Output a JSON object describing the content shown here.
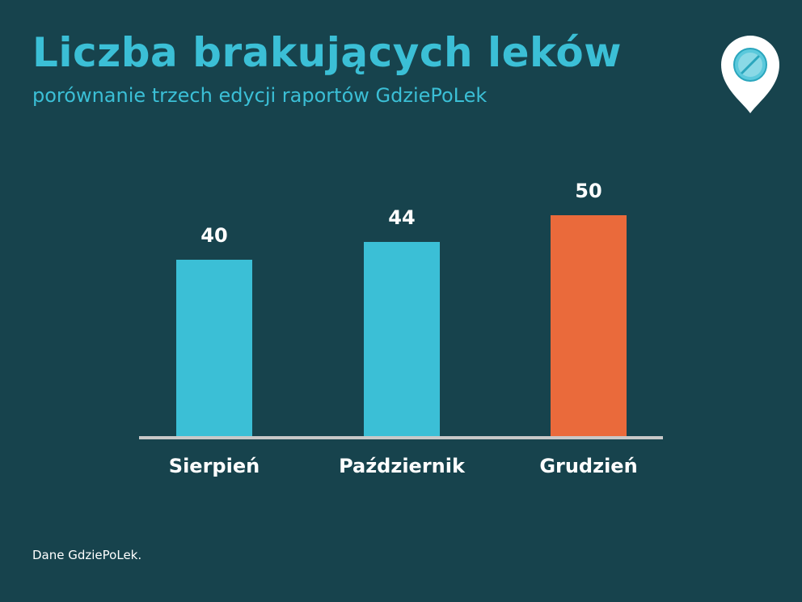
{
  "header": {
    "title": "Liczba brakujących leków",
    "subtitle": "porównanie trzech edycji raportów GdziePoLek"
  },
  "logo": {
    "icon": "pill-pin-icon"
  },
  "chart_data": {
    "type": "bar",
    "title": "Liczba brakujących leków",
    "subtitle": "porównanie trzech edycji raportów GdziePoLek",
    "categories": [
      "Sierpień",
      "Październik",
      "Grudzień"
    ],
    "values": [
      40,
      44,
      50
    ],
    "data_labels": [
      "40",
      "44",
      "50"
    ],
    "colors": [
      "#3bbfd6",
      "#3bbfd6",
      "#ea6a3b"
    ],
    "xlabel": "",
    "ylabel": "",
    "ylim": [
      0,
      50
    ],
    "grid": false,
    "legend": "none"
  },
  "footer": {
    "source": "Dane GdziePoLek."
  },
  "colors": {
    "background": "#17434d",
    "accent": "#3bbfd6",
    "highlight": "#ea6a3b",
    "axis": "#c8c8c8",
    "text": "#ffffff"
  }
}
